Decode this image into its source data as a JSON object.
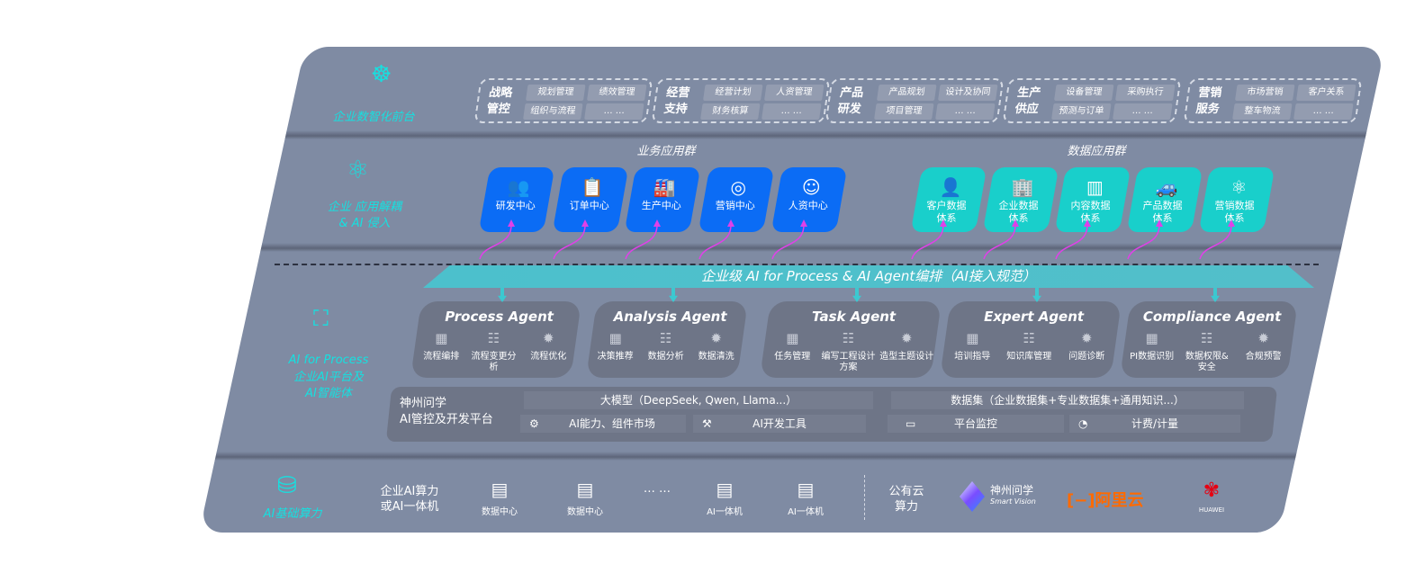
{
  "layers": {
    "front": "企业数智化前台",
    "apps": "企业 应用解耦\n& AI 侵入",
    "ai_en": "AI for Process",
    "ai_cn": "企业AI平台及\nAI智能体",
    "compute": "AI基础算力"
  },
  "front_groups": [
    {
      "title": "战略管控",
      "items": [
        "规划管理",
        "绩效管理",
        "组织与流程",
        "… …"
      ]
    },
    {
      "title": "经营支持",
      "items": [
        "经营计划",
        "人资管理",
        "财务核算",
        "… …"
      ]
    },
    {
      "title": "产品研发",
      "items": [
        "产品规划",
        "设计及协同",
        "项目管理",
        "… …"
      ]
    },
    {
      "title": "生产供应",
      "items": [
        "设备管理",
        "采购执行",
        "预测与订单",
        "… …"
      ]
    },
    {
      "title": "营销服务",
      "items": [
        "市场营销",
        "客户关系",
        "整车物流",
        "… …"
      ]
    }
  ],
  "business_group": {
    "title": "业务应用群",
    "items": [
      {
        "label": "研发中心",
        "icon": "users-icon"
      },
      {
        "label": "订单中心",
        "icon": "clipboard-icon"
      },
      {
        "label": "生产中心",
        "icon": "factory-icon"
      },
      {
        "label": "营销中心",
        "icon": "target-icon"
      },
      {
        "label": "人资中心",
        "icon": "person-icon"
      }
    ]
  },
  "data_group": {
    "title": "数据应用群",
    "items": [
      {
        "label": "客户数据\n体系",
        "icon": "user-icon"
      },
      {
        "label": "企业数据\n体系",
        "icon": "building-icon"
      },
      {
        "label": "内容数据\n体系",
        "icon": "books-icon"
      },
      {
        "label": "产品数据\n体系",
        "icon": "car-icon"
      },
      {
        "label": "营销数据\n体系",
        "icon": "atom-icon"
      }
    ]
  },
  "orchestration": "企业级 AI for Process & AI Agent编排（AI接入规范）",
  "agents": [
    {
      "name": "Process Agent",
      "items": [
        "流程编排",
        "流程变更分析",
        "流程优化"
      ]
    },
    {
      "name": "Analysis Agent",
      "items": [
        "决策推荐",
        "数据分析",
        "数据清洗"
      ]
    },
    {
      "name": "Task Agent",
      "items": [
        "任务管理",
        "编写工程设计方案",
        "造型主题设计"
      ]
    },
    {
      "name": "Expert Agent",
      "items": [
        "培训指导",
        "知识库管理",
        "问题诊断"
      ]
    },
    {
      "name": "Compliance Agent",
      "items": [
        "PI数据识别",
        "数据权限&\n安全",
        "合规预警"
      ]
    }
  ],
  "platform": {
    "title": "神州问学\nAI管控及开发平台",
    "llm": "大模型（DeepSeek, Qwen, Llama...）",
    "dataset": "数据集（企业数据集+专业数据集+通用知识...）",
    "market": "AI能力、组件市场",
    "devtools": "AI开发工具",
    "monitor": "平台监控",
    "billing": "计费/计量"
  },
  "compute": {
    "private": "企业AI算力\n或AI一体机",
    "servers": [
      "数据中心",
      "数据中心",
      "… …",
      "AI一体机",
      "AI一体机"
    ],
    "public": "公有云\n算力",
    "vendors": {
      "smartvision": "神州问学",
      "smartvision_en": "Smart Vision",
      "aliyun": "阿里云",
      "huawei": "HUAWEI"
    }
  },
  "colors": {
    "board": "#7f8ba3",
    "business": "#0b6cf5",
    "data": "#19cfcb",
    "accent": "#16e0e0",
    "arrow": "#e040e8",
    "aliyun": "#ff6a00",
    "huawei": "#e60012"
  }
}
